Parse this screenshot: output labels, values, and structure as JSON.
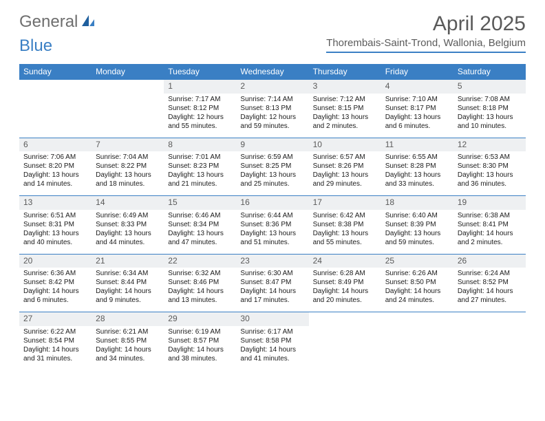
{
  "logo": {
    "part1": "General",
    "part2": "Blue"
  },
  "header": {
    "title": "April 2025",
    "location": "Thorembais-Saint-Trond, Wallonia, Belgium"
  },
  "colors": {
    "accent": "#3a7fc4",
    "header_bg": "#3a7fc4",
    "daynum_bg": "#eef0f2",
    "text": "#1a1a1a",
    "muted": "#5a5a5a"
  },
  "columns": [
    "Sunday",
    "Monday",
    "Tuesday",
    "Wednesday",
    "Thursday",
    "Friday",
    "Saturday"
  ],
  "weeks": [
    [
      null,
      null,
      {
        "d": "1",
        "sunrise": "7:17 AM",
        "sunset": "8:12 PM",
        "daylight": "12 hours and 55 minutes."
      },
      {
        "d": "2",
        "sunrise": "7:14 AM",
        "sunset": "8:13 PM",
        "daylight": "12 hours and 59 minutes."
      },
      {
        "d": "3",
        "sunrise": "7:12 AM",
        "sunset": "8:15 PM",
        "daylight": "13 hours and 2 minutes."
      },
      {
        "d": "4",
        "sunrise": "7:10 AM",
        "sunset": "8:17 PM",
        "daylight": "13 hours and 6 minutes."
      },
      {
        "d": "5",
        "sunrise": "7:08 AM",
        "sunset": "8:18 PM",
        "daylight": "13 hours and 10 minutes."
      }
    ],
    [
      {
        "d": "6",
        "sunrise": "7:06 AM",
        "sunset": "8:20 PM",
        "daylight": "13 hours and 14 minutes."
      },
      {
        "d": "7",
        "sunrise": "7:04 AM",
        "sunset": "8:22 PM",
        "daylight": "13 hours and 18 minutes."
      },
      {
        "d": "8",
        "sunrise": "7:01 AM",
        "sunset": "8:23 PM",
        "daylight": "13 hours and 21 minutes."
      },
      {
        "d": "9",
        "sunrise": "6:59 AM",
        "sunset": "8:25 PM",
        "daylight": "13 hours and 25 minutes."
      },
      {
        "d": "10",
        "sunrise": "6:57 AM",
        "sunset": "8:26 PM",
        "daylight": "13 hours and 29 minutes."
      },
      {
        "d": "11",
        "sunrise": "6:55 AM",
        "sunset": "8:28 PM",
        "daylight": "13 hours and 33 minutes."
      },
      {
        "d": "12",
        "sunrise": "6:53 AM",
        "sunset": "8:30 PM",
        "daylight": "13 hours and 36 minutes."
      }
    ],
    [
      {
        "d": "13",
        "sunrise": "6:51 AM",
        "sunset": "8:31 PM",
        "daylight": "13 hours and 40 minutes."
      },
      {
        "d": "14",
        "sunrise": "6:49 AM",
        "sunset": "8:33 PM",
        "daylight": "13 hours and 44 minutes."
      },
      {
        "d": "15",
        "sunrise": "6:46 AM",
        "sunset": "8:34 PM",
        "daylight": "13 hours and 47 minutes."
      },
      {
        "d": "16",
        "sunrise": "6:44 AM",
        "sunset": "8:36 PM",
        "daylight": "13 hours and 51 minutes."
      },
      {
        "d": "17",
        "sunrise": "6:42 AM",
        "sunset": "8:38 PM",
        "daylight": "13 hours and 55 minutes."
      },
      {
        "d": "18",
        "sunrise": "6:40 AM",
        "sunset": "8:39 PM",
        "daylight": "13 hours and 59 minutes."
      },
      {
        "d": "19",
        "sunrise": "6:38 AM",
        "sunset": "8:41 PM",
        "daylight": "14 hours and 2 minutes."
      }
    ],
    [
      {
        "d": "20",
        "sunrise": "6:36 AM",
        "sunset": "8:42 PM",
        "daylight": "14 hours and 6 minutes."
      },
      {
        "d": "21",
        "sunrise": "6:34 AM",
        "sunset": "8:44 PM",
        "daylight": "14 hours and 9 minutes."
      },
      {
        "d": "22",
        "sunrise": "6:32 AM",
        "sunset": "8:46 PM",
        "daylight": "14 hours and 13 minutes."
      },
      {
        "d": "23",
        "sunrise": "6:30 AM",
        "sunset": "8:47 PM",
        "daylight": "14 hours and 17 minutes."
      },
      {
        "d": "24",
        "sunrise": "6:28 AM",
        "sunset": "8:49 PM",
        "daylight": "14 hours and 20 minutes."
      },
      {
        "d": "25",
        "sunrise": "6:26 AM",
        "sunset": "8:50 PM",
        "daylight": "14 hours and 24 minutes."
      },
      {
        "d": "26",
        "sunrise": "6:24 AM",
        "sunset": "8:52 PM",
        "daylight": "14 hours and 27 minutes."
      }
    ],
    [
      {
        "d": "27",
        "sunrise": "6:22 AM",
        "sunset": "8:54 PM",
        "daylight": "14 hours and 31 minutes."
      },
      {
        "d": "28",
        "sunrise": "6:21 AM",
        "sunset": "8:55 PM",
        "daylight": "14 hours and 34 minutes."
      },
      {
        "d": "29",
        "sunrise": "6:19 AM",
        "sunset": "8:57 PM",
        "daylight": "14 hours and 38 minutes."
      },
      {
        "d": "30",
        "sunrise": "6:17 AM",
        "sunset": "8:58 PM",
        "daylight": "14 hours and 41 minutes."
      },
      null,
      null,
      null
    ]
  ],
  "labels": {
    "sunrise": "Sunrise:",
    "sunset": "Sunset:",
    "daylight": "Daylight:"
  }
}
